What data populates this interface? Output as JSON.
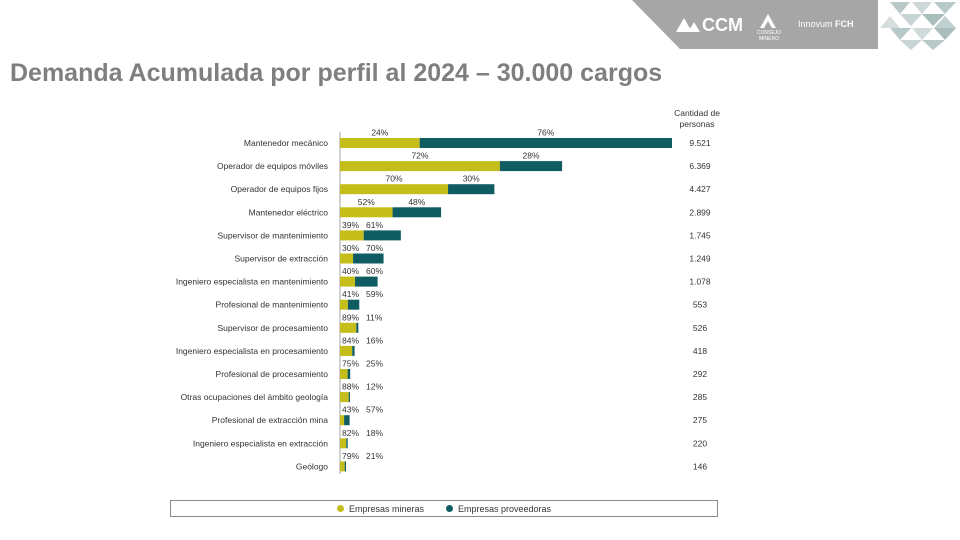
{
  "title": "Demanda Acumulada por perfil al 2024 – 30.000 cargos",
  "logos": {
    "ccm": "CCM",
    "consejo_minero": "CONSEJO MINERO",
    "innovum_prefix": "Innovum",
    "innovum_suffix": "FCH"
  },
  "colors": {
    "mineras": "#c4bd1a",
    "proveedoras": "#0f5c63",
    "header": "#a6a6a6"
  },
  "chart_data": {
    "type": "bar",
    "orientation": "horizontal",
    "stacked": true,
    "count_header": "Cantidad de personas",
    "categories": [
      "Mantenedor mecánico",
      "Operador de equipos móviles",
      "Operador de equipos fijos",
      "Mantenedor eléctrico",
      "Supervisor de mantenimiento",
      "Supervisor de extracción",
      "Ingeniero especialista en mantenimiento",
      "Profesional de mantenimiento",
      "Supervisor de procesamiento",
      "Ingeniero especialista en procesamiento",
      "Profesional de procesamiento",
      "Otras ocupaciones del ámbito geología",
      "Profesional de extracción mina",
      "Ingeniero especialista en extracción",
      "Geólogo"
    ],
    "totals": [
      9521,
      6369,
      4427,
      2899,
      1745,
      1249,
      1078,
      553,
      526,
      418,
      292,
      285,
      275,
      220,
      146
    ],
    "totals_labels": [
      "9.521",
      "6.369",
      "4.427",
      "2.899",
      "1.745",
      "1.249",
      "1.078",
      "553",
      "526",
      "418",
      "292",
      "285",
      "275",
      "220",
      "146"
    ],
    "series": [
      {
        "name": "Empresas mineras",
        "values_pct": [
          24,
          72,
          70,
          52,
          39,
          30,
          40,
          41,
          89,
          84,
          75,
          88,
          43,
          82,
          79
        ]
      },
      {
        "name": "Empresas proveedoras",
        "values_pct": [
          76,
          28,
          30,
          48,
          61,
          70,
          60,
          59,
          11,
          16,
          25,
          12,
          57,
          18,
          21
        ]
      }
    ],
    "legend": "bottom",
    "grid": false
  }
}
